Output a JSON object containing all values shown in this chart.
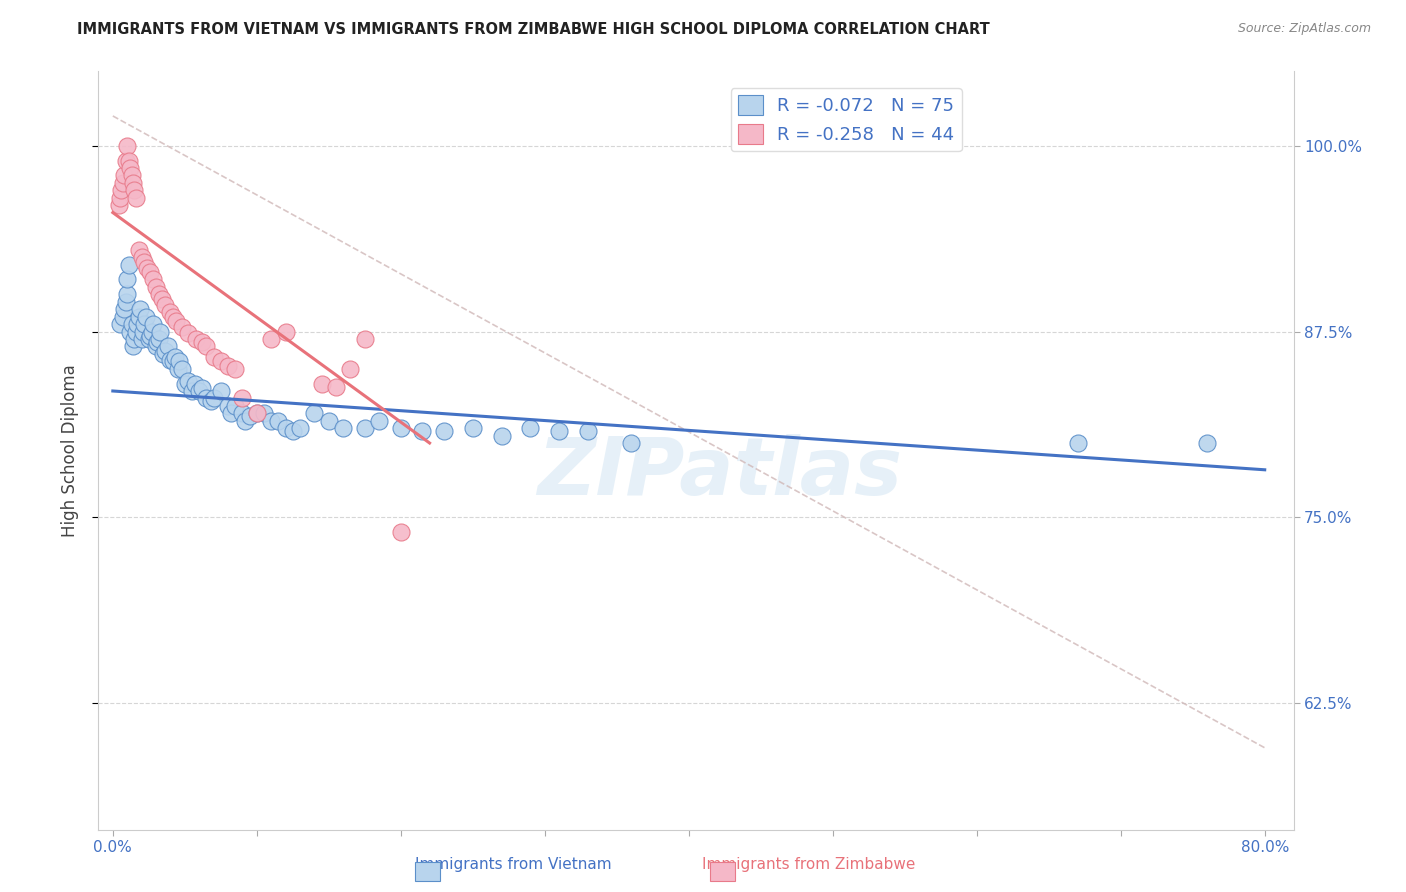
{
  "title": "IMMIGRANTS FROM VIETNAM VS IMMIGRANTS FROM ZIMBABWE HIGH SCHOOL DIPLOMA CORRELATION CHART",
  "source": "Source: ZipAtlas.com",
  "ylabel_label": "High School Diploma",
  "xlim": [
    -0.01,
    0.82
  ],
  "ylim": [
    0.54,
    1.05
  ],
  "yticks": [
    0.625,
    0.75,
    0.875,
    1.0
  ],
  "ytick_labels": [
    "62.5%",
    "75.0%",
    "87.5%",
    "100.0%"
  ],
  "xticks": [
    0.0,
    0.1,
    0.2,
    0.3,
    0.4,
    0.5,
    0.6,
    0.7,
    0.8
  ],
  "xtick_labels": [
    "0.0%",
    "",
    "",
    "",
    "",
    "",
    "",
    "",
    "80.0%"
  ],
  "vietnam_R": "-0.072",
  "vietnam_N": "75",
  "zimbabwe_R": "-0.258",
  "zimbabwe_N": "44",
  "vietnam_fill_color": "#b8d4ed",
  "zimbabwe_fill_color": "#f5b8c8",
  "vietnam_edge_color": "#5b8fc9",
  "zimbabwe_edge_color": "#e87a8a",
  "vietnam_line_color": "#4472c4",
  "zimbabwe_line_color": "#e8727a",
  "diagonal_line_color": "#d0b8b8",
  "tick_color": "#4472c4",
  "watermark": "ZIPatlas",
  "vietnam_line": [
    0.0,
    0.835,
    0.8,
    0.782
  ],
  "zimbabwe_line": [
    0.0,
    0.955,
    0.22,
    0.8
  ],
  "diagonal_line": [
    0.0,
    1.02,
    0.8,
    0.595
  ],
  "vietnam_scatter_x": [
    0.005,
    0.007,
    0.008,
    0.009,
    0.01,
    0.01,
    0.011,
    0.012,
    0.013,
    0.014,
    0.015,
    0.016,
    0.017,
    0.018,
    0.019,
    0.02,
    0.021,
    0.022,
    0.023,
    0.025,
    0.026,
    0.027,
    0.028,
    0.03,
    0.031,
    0.032,
    0.033,
    0.035,
    0.036,
    0.038,
    0.04,
    0.042,
    0.043,
    0.045,
    0.046,
    0.048,
    0.05,
    0.052,
    0.055,
    0.057,
    0.06,
    0.062,
    0.065,
    0.068,
    0.07,
    0.075,
    0.08,
    0.082,
    0.085,
    0.09,
    0.092,
    0.095,
    0.1,
    0.105,
    0.11,
    0.115,
    0.12,
    0.125,
    0.13,
    0.14,
    0.15,
    0.16,
    0.175,
    0.185,
    0.2,
    0.215,
    0.23,
    0.25,
    0.27,
    0.29,
    0.31,
    0.33,
    0.36,
    0.67,
    0.76
  ],
  "vietnam_scatter_y": [
    0.88,
    0.885,
    0.89,
    0.895,
    0.9,
    0.91,
    0.92,
    0.875,
    0.88,
    0.865,
    0.87,
    0.875,
    0.88,
    0.885,
    0.89,
    0.87,
    0.875,
    0.88,
    0.885,
    0.87,
    0.872,
    0.875,
    0.88,
    0.865,
    0.868,
    0.87,
    0.875,
    0.86,
    0.862,
    0.865,
    0.856,
    0.855,
    0.858,
    0.85,
    0.855,
    0.85,
    0.84,
    0.842,
    0.835,
    0.84,
    0.835,
    0.837,
    0.83,
    0.828,
    0.83,
    0.835,
    0.825,
    0.82,
    0.825,
    0.82,
    0.815,
    0.818,
    0.82,
    0.82,
    0.815,
    0.815,
    0.81,
    0.808,
    0.81,
    0.82,
    0.815,
    0.81,
    0.81,
    0.815,
    0.81,
    0.808,
    0.808,
    0.81,
    0.805,
    0.81,
    0.808,
    0.808,
    0.8,
    0.8,
    0.8
  ],
  "zimbabwe_scatter_x": [
    0.004,
    0.005,
    0.006,
    0.007,
    0.008,
    0.009,
    0.01,
    0.011,
    0.012,
    0.013,
    0.014,
    0.015,
    0.016,
    0.018,
    0.02,
    0.022,
    0.024,
    0.026,
    0.028,
    0.03,
    0.032,
    0.034,
    0.036,
    0.04,
    0.042,
    0.044,
    0.048,
    0.052,
    0.058,
    0.062,
    0.065,
    0.07,
    0.075,
    0.08,
    0.085,
    0.09,
    0.1,
    0.11,
    0.12,
    0.145,
    0.155,
    0.165,
    0.175,
    0.2
  ],
  "zimbabwe_scatter_y": [
    0.96,
    0.965,
    0.97,
    0.975,
    0.98,
    0.99,
    1.0,
    0.99,
    0.985,
    0.98,
    0.975,
    0.97,
    0.965,
    0.93,
    0.925,
    0.922,
    0.918,
    0.915,
    0.91,
    0.905,
    0.9,
    0.897,
    0.893,
    0.888,
    0.885,
    0.882,
    0.878,
    0.874,
    0.87,
    0.868,
    0.865,
    0.858,
    0.855,
    0.852,
    0.85,
    0.83,
    0.82,
    0.87,
    0.875,
    0.84,
    0.838,
    0.85,
    0.87,
    0.74
  ]
}
